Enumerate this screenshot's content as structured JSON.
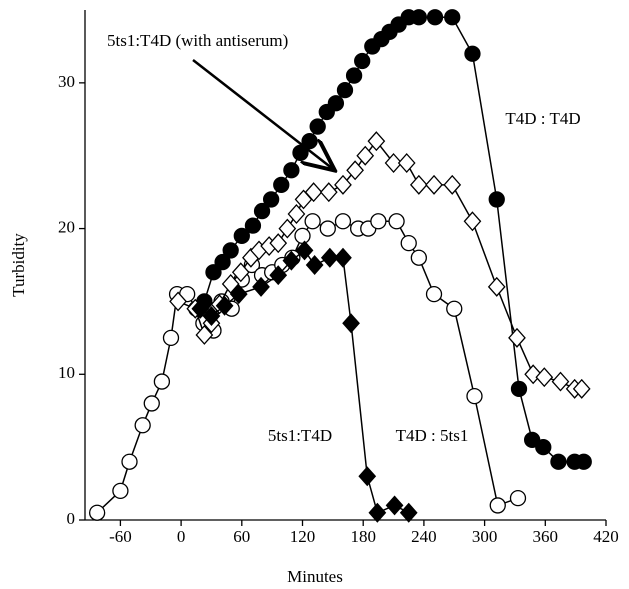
{
  "chart_data": {
    "type": "line",
    "x_label": "Minutes",
    "y_label": "Turbidity",
    "xlim": [
      -95,
      420
    ],
    "ylim": [
      0,
      35
    ],
    "xticks": [
      -60,
      0,
      60,
      120,
      180,
      240,
      300,
      360,
      420
    ],
    "yticks": [
      0,
      10,
      20,
      30
    ],
    "series": [
      {
        "name": "T4D : 5ts1",
        "color": "#000000",
        "marker": "circle",
        "filled": false,
        "x": [
          -83,
          -60,
          -51,
          -38,
          -29,
          -19,
          -10,
          -4,
          6,
          15,
          22,
          32,
          40,
          50,
          60,
          70,
          80,
          90,
          100,
          110,
          120,
          130,
          145,
          160,
          175,
          185,
          195,
          213,
          225,
          235,
          250,
          270,
          290,
          313,
          333
        ],
        "values": [
          0.5,
          2,
          4,
          6.5,
          8,
          9.5,
          12.5,
          15.5,
          15.5,
          14.5,
          13.5,
          13,
          15,
          14.5,
          16.5,
          17.5,
          16.8,
          17,
          17.5,
          18,
          19.5,
          20.5,
          20,
          20.5,
          20,
          20,
          20.5,
          20.5,
          19,
          18,
          15.5,
          14.5,
          8.5,
          1,
          1.5
        ]
      },
      {
        "name": "T4D : T4D",
        "color": "#000000",
        "marker": "circle",
        "filled": true,
        "x": [
          23,
          32,
          41,
          49,
          60,
          71,
          80,
          89,
          99,
          109,
          118,
          127,
          135,
          144,
          153,
          162,
          171,
          179,
          189,
          198,
          206,
          215,
          225,
          235,
          251,
          268,
          288,
          312,
          334,
          347,
          358,
          373,
          389,
          398
        ],
        "values": [
          15,
          17,
          17.7,
          18.5,
          19.5,
          20.2,
          21.2,
          22,
          23,
          24,
          25.2,
          26,
          27,
          28,
          28.6,
          29.5,
          30.5,
          31.5,
          32.5,
          33,
          33.5,
          34,
          34.5,
          34.5,
          34.5,
          34.5,
          32,
          22,
          9,
          5.5,
          5,
          4,
          4,
          4
        ]
      },
      {
        "name": "5ts1:T4D (with antiserum)",
        "color": "#000000",
        "marker": "diamond",
        "filled": false,
        "x": [
          -3,
          14,
          23,
          30,
          38,
          49,
          59,
          69,
          77,
          87,
          96,
          105,
          114,
          121,
          131,
          146,
          160,
          172,
          182,
          193,
          210,
          223,
          235,
          250,
          268,
          288,
          312,
          332,
          348,
          359,
          375,
          389,
          396
        ],
        "values": [
          15,
          14.5,
          12.7,
          13.5,
          14.8,
          16.2,
          17,
          18,
          18.5,
          18.8,
          19,
          20,
          21,
          22,
          22.5,
          22.5,
          23,
          24,
          25,
          26,
          24.5,
          24.5,
          23,
          23,
          23,
          20.5,
          16,
          12.5,
          10,
          9.8,
          9.5,
          9,
          9
        ]
      },
      {
        "name": "5ts1:T4D",
        "color": "#000000",
        "marker": "diamond",
        "filled": true,
        "x": [
          19,
          30,
          43,
          57,
          79,
          96,
          109,
          122,
          132,
          147,
          160,
          168,
          184,
          194,
          211,
          225
        ],
        "values": [
          14.5,
          14,
          14.7,
          15.5,
          16,
          16.8,
          17.8,
          18.5,
          17.5,
          18,
          18,
          13.5,
          3,
          0.5,
          1,
          0.5
        ]
      }
    ]
  }
}
